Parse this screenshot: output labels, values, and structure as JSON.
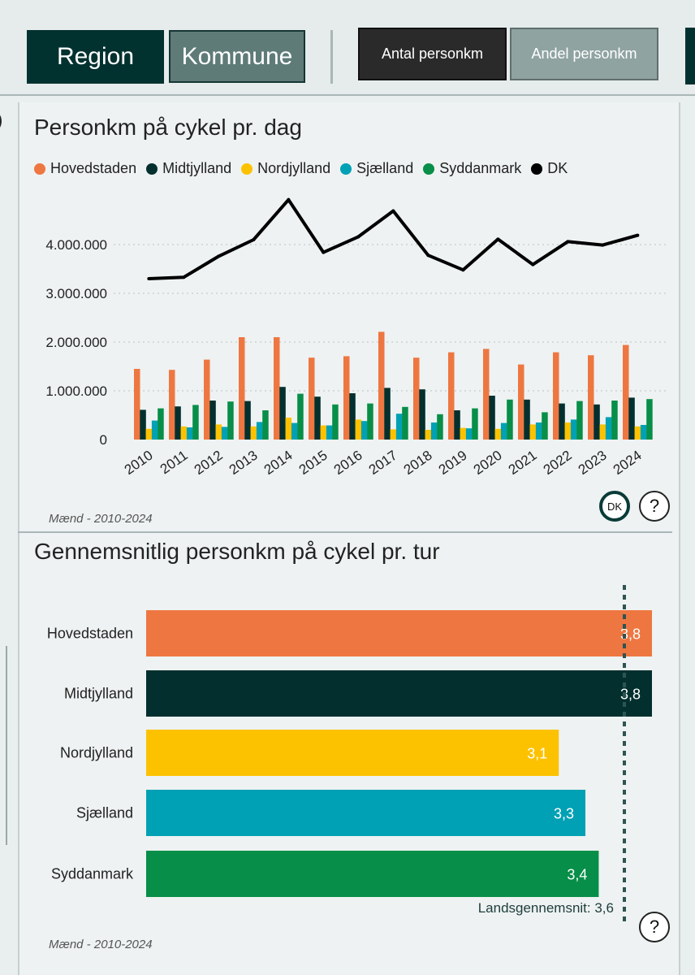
{
  "toolbar": {
    "region_label": "Region",
    "kommune_label": "Kommune",
    "antal_label": "Antal personkm",
    "andel_label": "Andel personkm"
  },
  "left_glyph": ")",
  "panel1": {
    "title": "Personkm på cykel pr. dag",
    "note": "Mænd - 2010-2024",
    "dk_button": "DK",
    "help": "?"
  },
  "panel2": {
    "title": "Gennemsnitlig personkm på cykel pr. tur",
    "note": "Mænd - 2010-2024",
    "help": "?"
  },
  "colors": {
    "Hovedstaden": "#ee7741",
    "Midtjylland": "#03302f",
    "Nordjylland": "#fcc200",
    "Sjælland": "#00a1b5",
    "Syddanmark": "#078e48",
    "DK": "#000000"
  },
  "chart_data": [
    {
      "type": "bar",
      "title": "Personkm på cykel pr. dag",
      "legend": [
        "Hovedstaden",
        "Midtjylland",
        "Nordjylland",
        "Sjælland",
        "Syddanmark",
        "DK"
      ],
      "legend_position": "top",
      "categories": [
        "2010",
        "2011",
        "2012",
        "2013",
        "2014",
        "2015",
        "2016",
        "2017",
        "2018",
        "2019",
        "2020",
        "2021",
        "2022",
        "2023",
        "2024"
      ],
      "y_ticks": [
        "0",
        "1.000.000",
        "2.000.000",
        "3.000.000",
        "4.000.000"
      ],
      "ylim": [
        0,
        5000000
      ],
      "grid": true,
      "series": [
        {
          "name": "Hovedstaden",
          "type": "bar",
          "values": [
            1450000,
            1430000,
            1640000,
            2100000,
            2100000,
            1680000,
            1710000,
            2210000,
            1680000,
            1790000,
            1860000,
            1540000,
            1790000,
            1730000,
            1940000
          ]
        },
        {
          "name": "Midtjylland",
          "type": "bar",
          "values": [
            610000,
            680000,
            800000,
            790000,
            1080000,
            880000,
            950000,
            1060000,
            1030000,
            600000,
            900000,
            820000,
            740000,
            720000,
            860000
          ]
        },
        {
          "name": "Nordjylland",
          "type": "bar",
          "values": [
            220000,
            270000,
            310000,
            270000,
            450000,
            290000,
            410000,
            210000,
            200000,
            240000,
            220000,
            310000,
            350000,
            310000,
            270000
          ]
        },
        {
          "name": "Sjælland",
          "type": "bar",
          "values": [
            390000,
            250000,
            260000,
            360000,
            340000,
            290000,
            380000,
            530000,
            350000,
            230000,
            340000,
            350000,
            410000,
            460000,
            300000
          ]
        },
        {
          "name": "Syddanmark",
          "type": "bar",
          "values": [
            640000,
            710000,
            780000,
            600000,
            940000,
            720000,
            740000,
            670000,
            520000,
            640000,
            820000,
            560000,
            790000,
            800000,
            830000
          ]
        },
        {
          "name": "DK",
          "type": "line",
          "values": [
            3300000,
            3330000,
            3760000,
            4100000,
            4920000,
            3840000,
            4160000,
            4690000,
            3780000,
            3480000,
            4110000,
            3590000,
            4060000,
            3990000,
            4190000
          ]
        }
      ]
    },
    {
      "type": "bar",
      "orientation": "horizontal",
      "title": "Gennemsnitlig personkm på cykel pr. tur",
      "categories": [
        "Hovedstaden",
        "Midtjylland",
        "Nordjylland",
        "Sjælland",
        "Syddanmark"
      ],
      "values": [
        3.8,
        3.8,
        3.1,
        3.3,
        3.4
      ],
      "value_labels": [
        "3,8",
        "3,8",
        "3,1",
        "3,3",
        "3,4"
      ],
      "reference_line": {
        "value": 3.6,
        "label": "Landsgennemsnit: 3,6"
      },
      "xlim": [
        0,
        3.8
      ]
    }
  ]
}
